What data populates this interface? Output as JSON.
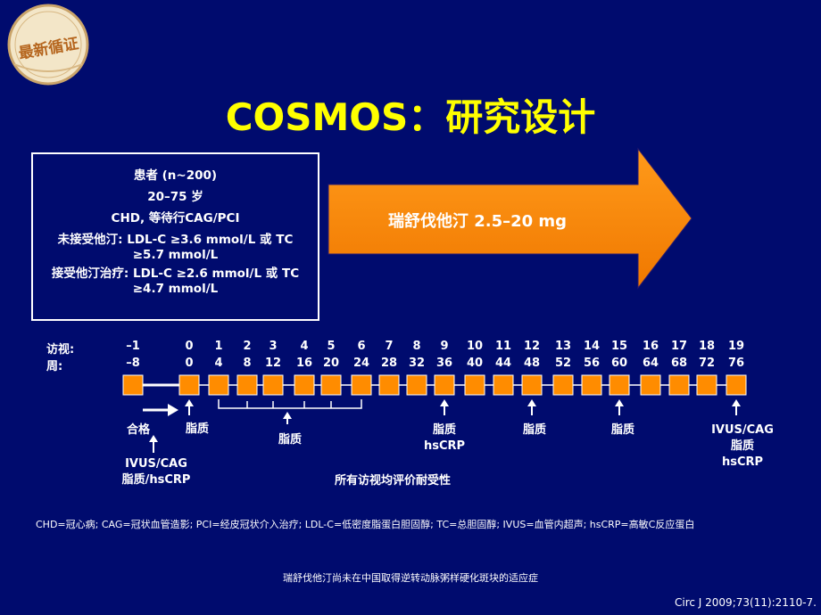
{
  "badge": {
    "text": "最新循证"
  },
  "title": "COSMOS：研究设计",
  "patients": {
    "lines": [
      "患者 (n~200)",
      "20–75 岁",
      "CHD, 等待行CAG/PCI",
      "未接受他汀: LDL-C ≥3.6 mmol/L 或 TC",
      "≥5.7 mmol/L",
      "接受他汀治疗: LDL-C ≥2.6 mmol/L 或 TC",
      "≥4.7 mmol/L"
    ]
  },
  "treatment_arrow": {
    "label": "瑞舒伐他汀 2.5–20 mg",
    "color": "#ff8c00"
  },
  "timeline": {
    "visit_label": "访视:",
    "week_label": "周:",
    "visits": [
      "–1",
      "0",
      "1",
      "2",
      "3",
      "4",
      "5",
      "6",
      "7",
      "8",
      "9",
      "10",
      "11",
      "12",
      "13",
      "14",
      "15",
      "16",
      "17",
      "18",
      "19"
    ],
    "weeks": [
      "–8",
      "0",
      "4",
      "8",
      "12",
      "16",
      "20",
      "24",
      "28",
      "32",
      "36",
      "40",
      "44",
      "48",
      "52",
      "56",
      "60",
      "64",
      "68",
      "72",
      "76"
    ],
    "marker_color": "#ff8c00"
  },
  "annotations": {
    "qualify": "合格",
    "baseline_imaging": [
      "IVUS/CAG",
      "脂质/hsCRP"
    ],
    "lipids_v0": "脂质",
    "lipids_bracket": "脂质",
    "v9": [
      "脂质",
      "hsCRP"
    ],
    "v12": "脂质",
    "v15": "脂质",
    "v19": [
      "IVUS/CAG",
      "脂质",
      "hsCRP"
    ],
    "tolerability": "所有访视均评价耐受性"
  },
  "footnote": "CHD=冠心病; CAG=冠状血管造影; PCI=经皮冠状介入治疗; LDL-C=低密度脂蛋白胆固醇; TC=总胆固醇; IVUS=血管内超声; hsCRP=高敏C反应蛋白",
  "warning": "瑞舒伐他汀尚未在中国取得逆转动脉粥样硬化斑块的适应症",
  "citation": "Circ J 2009;73(11):2110-7."
}
